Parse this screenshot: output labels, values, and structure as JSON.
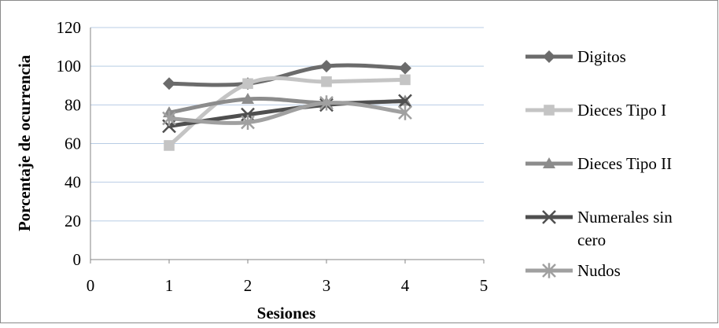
{
  "chart_data": {
    "type": "line",
    "title": "",
    "xlabel": "Sesiones",
    "ylabel": "Porcentaje de ocurrencia",
    "xlim": [
      0,
      5
    ],
    "ylim": [
      0,
      120
    ],
    "xticks": [
      0,
      1,
      2,
      3,
      4,
      5
    ],
    "yticks": [
      0,
      20,
      40,
      60,
      80,
      100,
      120
    ],
    "grid": "horizontal",
    "legend_position": "right",
    "x": [
      1,
      2,
      3,
      4
    ],
    "series": [
      {
        "name": "Digitos",
        "values": [
          91,
          91,
          100,
          99
        ],
        "color": "#6b6b6b",
        "marker": "diamond"
      },
      {
        "name": "Dieces Tipo I",
        "values": [
          59,
          91,
          92,
          93
        ],
        "color": "#c4c4c4",
        "marker": "square"
      },
      {
        "name": "Dieces Tipo II",
        "values": [
          76,
          83,
          81,
          82
        ],
        "color": "#8c8c8c",
        "marker": "triangle"
      },
      {
        "name": "Numerales sin cero",
        "values": [
          69,
          75,
          80,
          82
        ],
        "color": "#4f4f4f",
        "marker": "x"
      },
      {
        "name": "Nudos",
        "values": [
          73,
          71,
          81,
          76
        ],
        "color": "#a0a0a0",
        "marker": "star"
      }
    ]
  }
}
